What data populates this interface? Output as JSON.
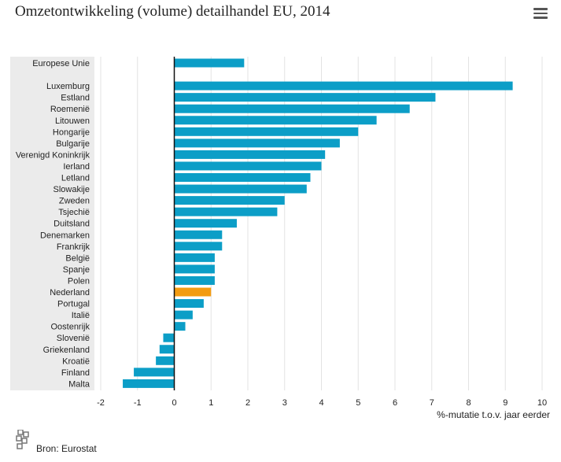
{
  "chart_data": {
    "type": "bar",
    "orientation": "horizontal",
    "title": "Omzetontwikkeling (volume) detailhandel EU, 2014",
    "xlabel": "%-mutatie t.o.v. jaar eerder",
    "xlim": [
      -2,
      10
    ],
    "xticks": [
      "-2",
      "-1",
      "0",
      "1",
      "2",
      "3",
      "4",
      "5",
      "6",
      "7",
      "8",
      "9",
      "10"
    ],
    "grid": "vertical",
    "base_color": "#0c9ec7",
    "highlight_color": "#f39c12",
    "categories": [
      {
        "label": "Europese Unie",
        "value": 1.9
      },
      {
        "label": "",
        "value": null
      },
      {
        "label": "Luxemburg",
        "value": 9.2
      },
      {
        "label": "Estland",
        "value": 7.1
      },
      {
        "label": "Roemenië",
        "value": 6.4
      },
      {
        "label": "Litouwen",
        "value": 5.5
      },
      {
        "label": "Hongarije",
        "value": 5.0
      },
      {
        "label": "Bulgarije",
        "value": 4.5
      },
      {
        "label": "Verenigd Koninkrijk",
        "value": 4.1
      },
      {
        "label": "Ierland",
        "value": 4.0
      },
      {
        "label": "Letland",
        "value": 3.7
      },
      {
        "label": "Slowakije",
        "value": 3.6
      },
      {
        "label": "Zweden",
        "value": 3.0
      },
      {
        "label": "Tsjechië",
        "value": 2.8
      },
      {
        "label": "Duitsland",
        "value": 1.7
      },
      {
        "label": "Denemarken",
        "value": 1.3
      },
      {
        "label": "Frankrijk",
        "value": 1.3
      },
      {
        "label": "België",
        "value": 1.1
      },
      {
        "label": "Spanje",
        "value": 1.1
      },
      {
        "label": "Polen",
        "value": 1.1
      },
      {
        "label": "Nederland",
        "value": 1.0,
        "highlight": true
      },
      {
        "label": "Portugal",
        "value": 0.8
      },
      {
        "label": "Italië",
        "value": 0.5
      },
      {
        "label": "Oostenrijk",
        "value": 0.3
      },
      {
        "label": "Slovenië",
        "value": -0.3
      },
      {
        "label": "Griekenland",
        "value": -0.4
      },
      {
        "label": "Kroatië",
        "value": -0.5
      },
      {
        "label": "Finland",
        "value": -1.1
      },
      {
        "label": "Malta",
        "value": -1.4
      }
    ]
  },
  "footer": {
    "source": "Bron: Eurostat"
  },
  "icons": {
    "menu": "hamburger-menu-icon",
    "logo": "cbs-logo-icon"
  }
}
